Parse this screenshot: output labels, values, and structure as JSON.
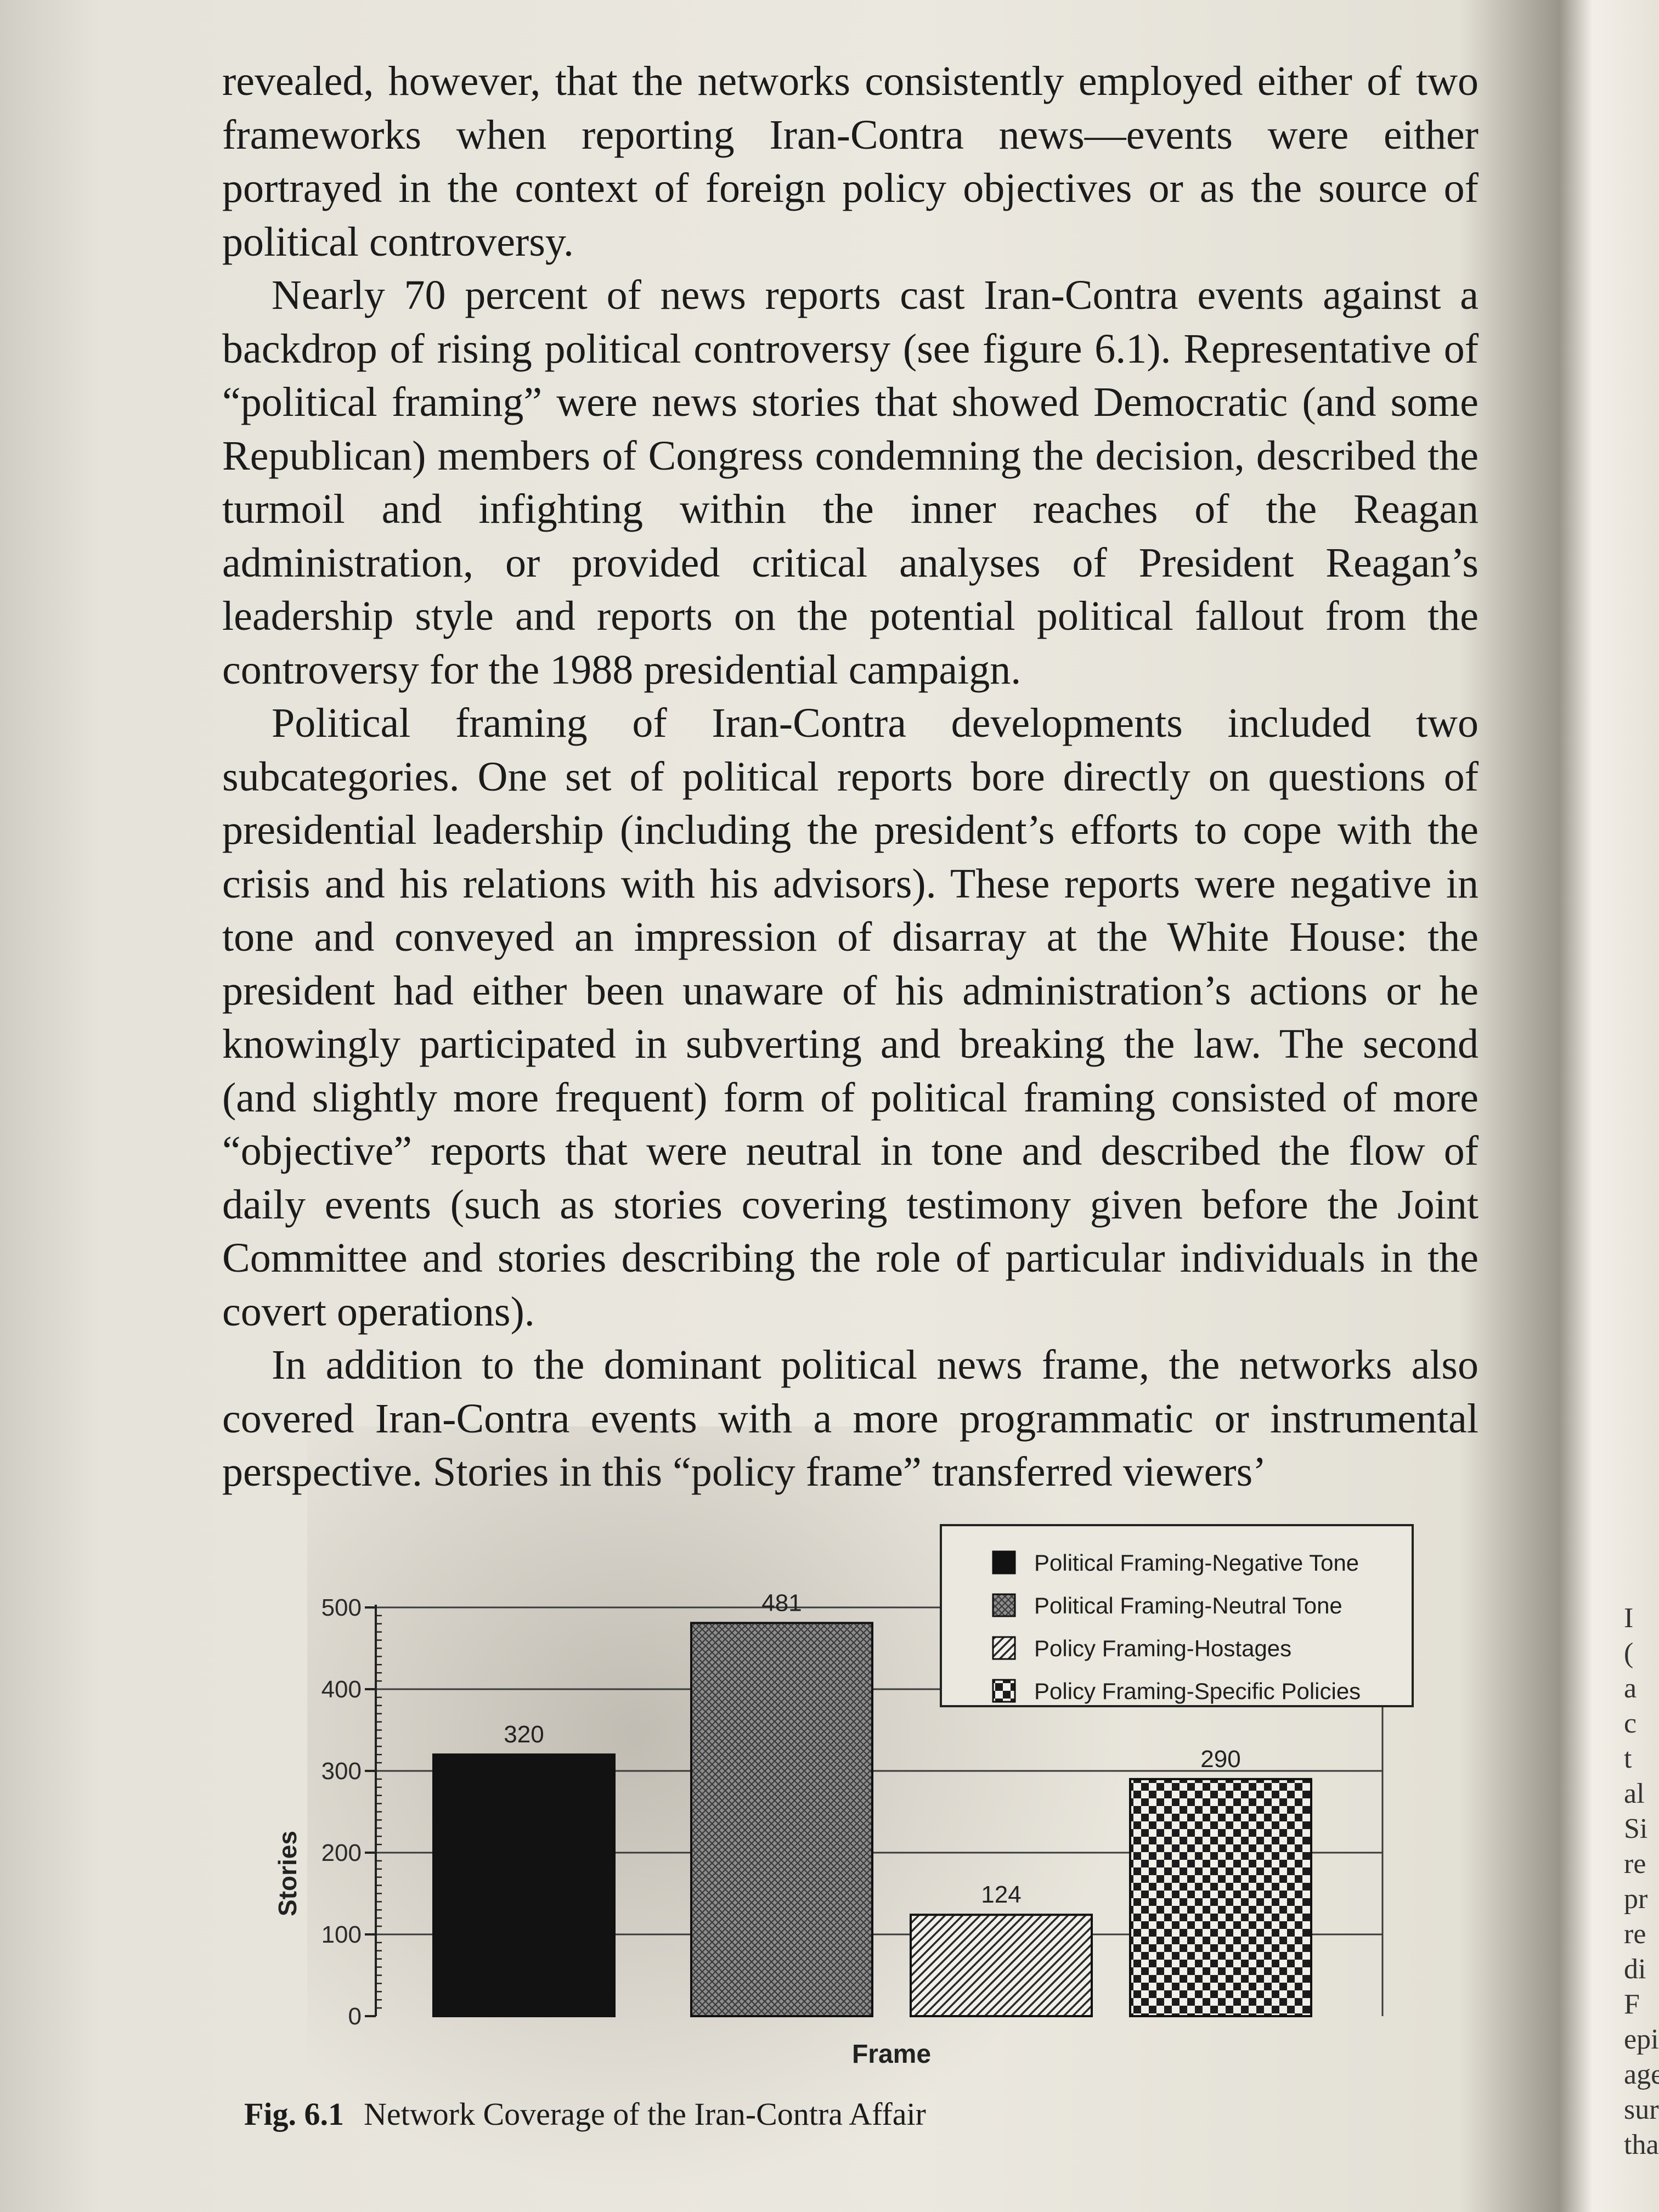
{
  "paragraphs": [
    "revealed, however, that the networks consistently employed either of two frameworks when reporting Iran-Contra news—events were either portrayed in the context of foreign policy objectives or as the source of political controversy.",
    "Nearly 70 percent of news reports cast Iran-Contra events against a backdrop of rising political controversy (see figure 6.1). Representative of “political framing” were news stories that showed Democratic (and some Republican) members of Congress condemning the decision, described the turmoil and infighting within the inner reaches of the Reagan administration, or provided critical analyses of President Reagan’s leadership style and reports on the potential political fallout from the controversy for the 1988 presidential campaign.",
    "Political framing of Iran-Contra developments included two subcategories. One set of political reports bore directly on questions of presidential leadership (including the president’s efforts to cope with the crisis and his relations with his advisors). These reports were negative in tone and conveyed an impression of disarray at the White House: the president had either been unaware of his administration’s actions or he knowingly participated in subverting and breaking the law. The second (and slightly more frequent) form of political framing consisted of more “objective” reports that were neutral in tone and described the flow of daily events (such as stories covering testimony given before the Joint Committee and stories describing the role of particular individuals in the covert operations).",
    "In addition to the dominant political news frame, the networks also covered Iran-Contra events with a more programmatic or instrumental perspective. Stories in this “policy frame” transferred viewers’"
  ],
  "caption": {
    "fig_label": "Fig. 6.1",
    "fig_title": "Network Coverage of the Iran-Contra Affair"
  },
  "right_margin_fragments": [
    "I",
    "(",
    "a",
    "c",
    "t",
    "al",
    "Si",
    "re",
    "pr",
    "re",
    "di",
    "F",
    "epi",
    "age",
    "surr",
    "that"
  ],
  "chart_data": {
    "type": "bar",
    "categories": [
      "Political Framing-Negative Tone",
      "Political Framing-Neutral Tone",
      "Policy Framing-Hostages",
      "Policy Framing-Specific Policies"
    ],
    "values": [
      320,
      481,
      124,
      290
    ],
    "data_labels": [
      "320",
      "481",
      "124",
      "290"
    ],
    "xlabel": "Frame",
    "ylabel": "Stories",
    "ylim": [
      0,
      500
    ],
    "yticks": [
      0,
      100,
      200,
      300,
      400,
      500
    ],
    "ytick_labels": [
      "0",
      "100",
      "200",
      "300",
      "400",
      "500"
    ],
    "grid": true,
    "legend_position": "top-right",
    "fills": [
      "solid-black",
      "fine-crosshatch",
      "diagonal-hatch",
      "checkerboard"
    ]
  }
}
